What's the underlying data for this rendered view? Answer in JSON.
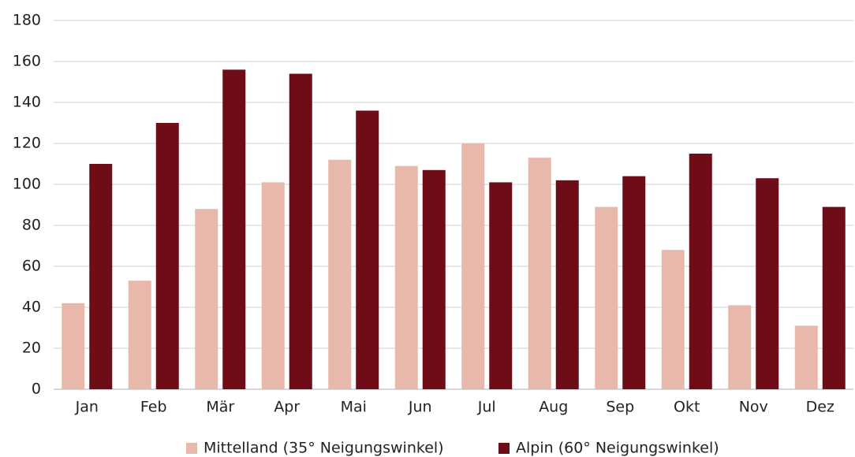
{
  "chart_data": {
    "type": "bar",
    "categories": [
      "Jan",
      "Feb",
      "Mär",
      "Apr",
      "Mai",
      "Jun",
      "Jul",
      "Aug",
      "Sep",
      "Okt",
      "Nov",
      "Dez"
    ],
    "series": [
      {
        "name": "Mittelland (35° Neigungswinkel)",
        "color": "#e8b9aa",
        "values": [
          42,
          53,
          88,
          101,
          112,
          109,
          120,
          113,
          89,
          68,
          41,
          31
        ]
      },
      {
        "name": "Alpin (60° Neigungswinkel)",
        "color": "#6e0c18",
        "values": [
          110,
          130,
          156,
          154,
          136,
          107,
          101,
          102,
          104,
          115,
          103,
          89
        ]
      }
    ],
    "ylim": [
      0,
      180
    ],
    "yticks": [
      0,
      20,
      40,
      60,
      80,
      100,
      120,
      140,
      160,
      180
    ],
    "grid": true,
    "legend": "bottom"
  }
}
